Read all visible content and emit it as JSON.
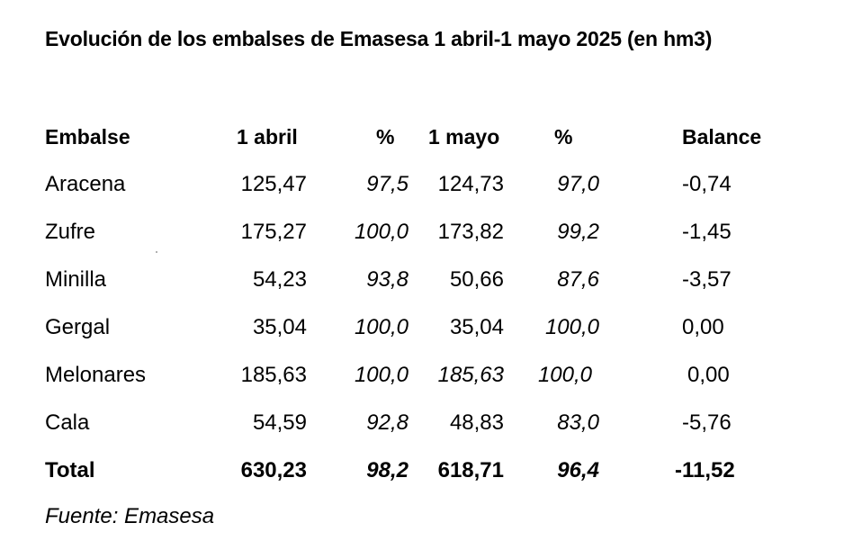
{
  "title": "Evolución de los embalses de Emasesa 1 abril-1 mayo 2025 (en hm3)",
  "table": {
    "headers": {
      "name": "Embalse",
      "abril": "1 abril",
      "pct_abril": "%",
      "mayo": "1 mayo",
      "pct_mayo": "%",
      "balance": "Balance"
    },
    "rows": [
      {
        "name": "Aracena",
        "abril": "125,47",
        "pct_abril": "97,5",
        "mayo": "124,73",
        "pct_mayo": "97,0",
        "balance": "-0,74"
      },
      {
        "name": "Zufre",
        "abril": "175,27",
        "pct_abril": "100,0",
        "mayo": "173,82",
        "pct_mayo": "99,2",
        "balance": "-1,45"
      },
      {
        "name": "Minilla",
        "abril": "54,23",
        "pct_abril": "93,8",
        "mayo": "50,66",
        "pct_mayo": "87,6",
        "balance": "-3,57"
      },
      {
        "name": "Gergal",
        "abril": "35,04",
        "pct_abril": "100,0",
        "mayo": "35,04",
        "pct_mayo": "100,0",
        "balance": "0,00"
      },
      {
        "name": "Melonares",
        "abril": "185,63",
        "pct_abril": "100,0",
        "mayo": "185,63",
        "pct_mayo": "100,0",
        "balance": "0,00"
      },
      {
        "name": "Cala",
        "abril": "54,59",
        "pct_abril": "92,8",
        "mayo": "48,83",
        "pct_mayo": "83,0",
        "balance": "-5,76"
      }
    ],
    "total": {
      "name": "Total",
      "abril": "630,23",
      "pct_abril": "98,2",
      "mayo": "618,71",
      "pct_mayo": "96,4",
      "balance": "-11,52"
    }
  },
  "source": "Fuente: Emasesa"
}
